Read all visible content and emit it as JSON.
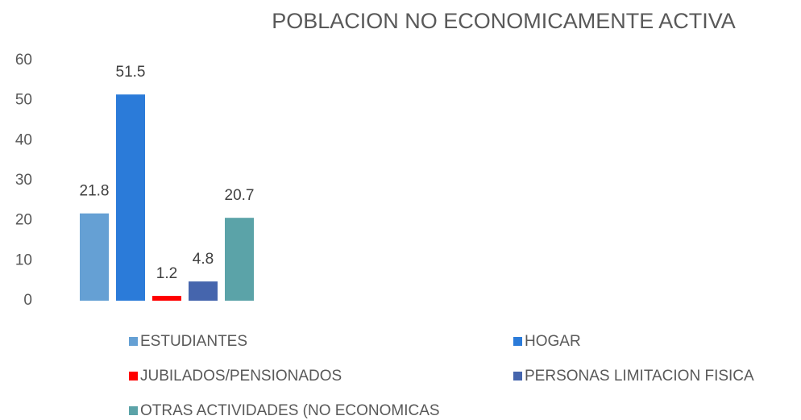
{
  "chart_data": {
    "type": "bar",
    "title": "POBLACION NO ECONOMICAMENTE ACTIVA",
    "categories": [
      null
    ],
    "series": [
      {
        "name": "ESTUDIANTES",
        "color": "#65a0d4",
        "values": [
          21.8
        ]
      },
      {
        "name": "HOGAR",
        "color": "#2b7bd9",
        "values": [
          51.5
        ]
      },
      {
        "name": "JUBILADOS/PENSIONADOS",
        "color": "#ff0000",
        "values": [
          1.2
        ]
      },
      {
        "name": "PERSONAS LIMITACION FISICA",
        "color": "#4565ad",
        "values": [
          4.8
        ]
      },
      {
        "name": "OTRAS ACTIVIDADES (NO ECONOMICAS",
        "color": "#5ba3a8",
        "values": [
          20.7
        ]
      }
    ],
    "ylim": [
      0,
      60
    ],
    "yticks": [
      0,
      10,
      20,
      30,
      40,
      50,
      60
    ],
    "grid": false,
    "legend": "bottom"
  }
}
